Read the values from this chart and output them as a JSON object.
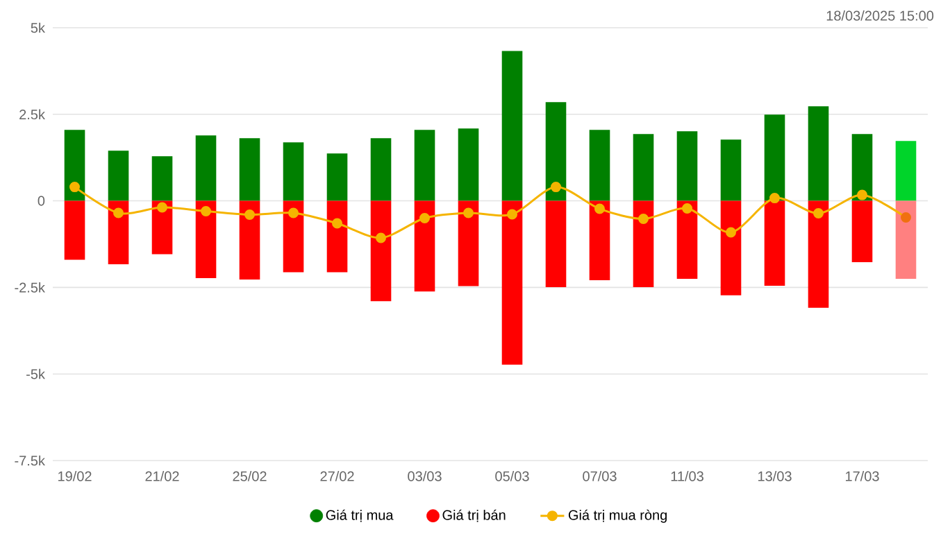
{
  "chart_data": {
    "type": "bar",
    "categories": [
      "19/02",
      null,
      "21/02",
      null,
      "25/02",
      null,
      "27/02",
      null,
      "03/03",
      null,
      "05/03",
      null,
      "07/03",
      null,
      "11/03",
      null,
      "13/03",
      null,
      "17/03",
      null
    ],
    "series": [
      {
        "name": "Giá trị mua",
        "type": "bar",
        "color": "#008000",
        "colors": [
          "#008000",
          "#008000",
          "#008000",
          "#008000",
          "#008000",
          "#008000",
          "#008000",
          "#008000",
          "#008000",
          "#008000",
          "#008000",
          "#008000",
          "#008000",
          "#008000",
          "#008000",
          "#008000",
          "#008000",
          "#008000",
          "#008000",
          "#00d42a"
        ],
        "values": [
          2050,
          1450,
          1290,
          1890,
          1810,
          1690,
          1370,
          1810,
          2050,
          2090,
          4330,
          2850,
          2050,
          1930,
          2010,
          1770,
          2490,
          2730,
          1930,
          1730
        ]
      },
      {
        "name": "Giá trị bán",
        "type": "bar",
        "color": "#ff0000",
        "colors": [
          "#ff0000",
          "#ff0000",
          "#ff0000",
          "#ff0000",
          "#ff0000",
          "#ff0000",
          "#ff0000",
          "#ff0000",
          "#ff0000",
          "#ff0000",
          "#ff0000",
          "#ff0000",
          "#ff0000",
          "#ff0000",
          "#ff0000",
          "#ff0000",
          "#ff0000",
          "#ff0000",
          "#ff0000",
          "#ff8080"
        ],
        "values": [
          -1700,
          -1830,
          -1540,
          -2230,
          -2270,
          -2060,
          -2060,
          -2900,
          -2620,
          -2460,
          -4730,
          -2490,
          -2290,
          -2490,
          -2250,
          -2730,
          -2450,
          -3090,
          -1770,
          -2250
        ]
      },
      {
        "name": "Giá trị mua ròng",
        "type": "line",
        "color": "#f5b400",
        "colors": [
          "#f5b400",
          "#f5b400",
          "#f5b400",
          "#f5b400",
          "#f5b400",
          "#f5b400",
          "#f5b400",
          "#f5b400",
          "#f5b400",
          "#f5b400",
          "#f5b400",
          "#f5b400",
          "#f5b400",
          "#f5b400",
          "#f5b400",
          "#f5b400",
          "#f5b400",
          "#f5b400",
          "#f5b400",
          "#f07010"
        ],
        "values": [
          400,
          -350,
          -190,
          -300,
          -400,
          -350,
          -650,
          -1070,
          -500,
          -350,
          -390,
          400,
          -230,
          -520,
          -220,
          -910,
          80,
          -360,
          170,
          -480
        ]
      }
    ],
    "ylim": [
      -7500,
      5000
    ],
    "yticks": [
      {
        "value": -7500,
        "label": "-7.5k"
      },
      {
        "value": -5000,
        "label": "-5k"
      },
      {
        "value": -2500,
        "label": "-2.5k"
      },
      0,
      {
        "value": 2500,
        "label": "2.5k"
      },
      {
        "value": 5000,
        "label": "5k"
      }
    ],
    "grid": "y",
    "stacked": true,
    "legend": "bottom",
    "marker": "circle",
    "annotations": [
      "18/03/2025 15:00"
    ]
  }
}
